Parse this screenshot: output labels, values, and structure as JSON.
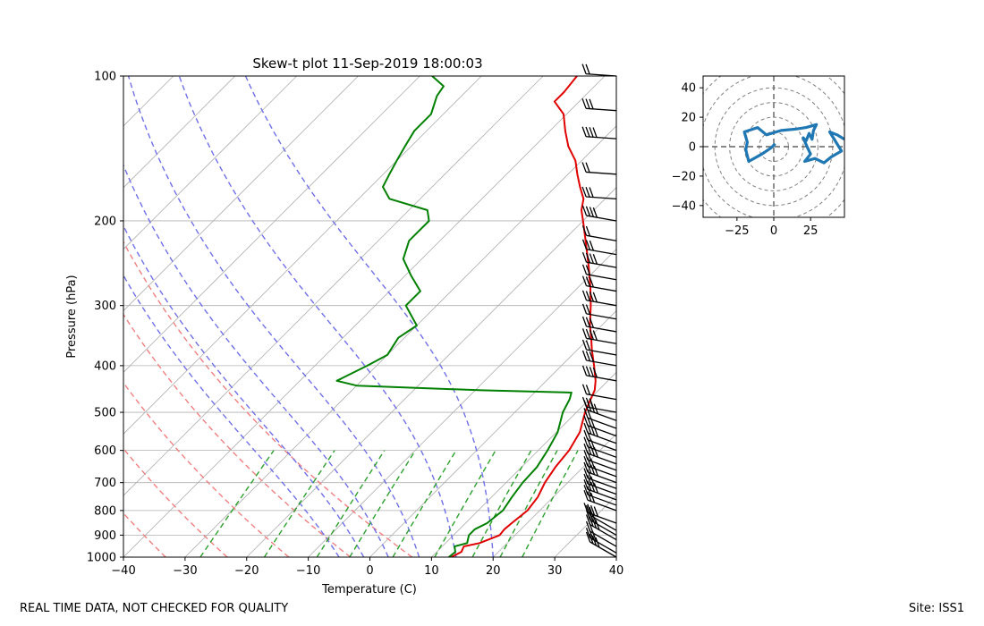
{
  "page": {
    "footer_left": "REAL TIME DATA, NOT CHECKED FOR QUALITY",
    "footer_right": "Site: ISS1"
  },
  "colors": {
    "temperature": "#e00000",
    "dewpoint": "#008000",
    "dry_adiabat": "#f08080",
    "moist_adiabat": "#7070e8",
    "mixing_ratio": "#2ca02c",
    "hodograph": "#1f77b4"
  },
  "chart_data": [
    {
      "type": "line",
      "subtype": "skew-t",
      "title": "Skew-t plot 11-Sep-2019 18:00:03",
      "xlabel": "Temperature (C)",
      "ylabel": "Pressure (hPa)",
      "xlim": [
        -40,
        40
      ],
      "ylim": [
        1000,
        100
      ],
      "x_ticks": [
        -40,
        -30,
        -20,
        -10,
        0,
        10,
        20,
        30,
        40
      ],
      "x_tick_labels": [
        "−40",
        "−30",
        "−20",
        "−10",
        "0",
        "10",
        "20",
        "30",
        "40"
      ],
      "y_ticks": [
        1000,
        900,
        800,
        700,
        600,
        500,
        400,
        300,
        200,
        100
      ],
      "y_tick_labels": [
        "1000",
        "900",
        "800",
        "700",
        "600",
        "500",
        "400",
        "300",
        "200",
        "100"
      ],
      "grid": true,
      "series": [
        {
          "name": "Temperature",
          "points": [
            [
              1000,
              13.2
            ],
            [
              975,
              14.0
            ],
            [
              950,
              13.5
            ],
            [
              935,
              15.5
            ],
            [
              900,
              17.5
            ],
            [
              875,
              17.3
            ],
            [
              850,
              17.5
            ],
            [
              800,
              18.0
            ],
            [
              750,
              17.5
            ],
            [
              700,
              16.3
            ],
            [
              650,
              15.5
            ],
            [
              600,
              15.0
            ],
            [
              550,
              13.8
            ],
            [
              500,
              11.4
            ],
            [
              470,
              10.2
            ],
            [
              450,
              9.4
            ],
            [
              430,
              8.0
            ],
            [
              400,
              5.3
            ],
            [
              370,
              2.3
            ],
            [
              350,
              0.3
            ],
            [
              330,
              -1.9
            ],
            [
              300,
              -5.0
            ],
            [
              275,
              -8.0
            ],
            [
              250,
              -11.5
            ],
            [
              225,
              -15.5
            ],
            [
              200,
              -20.0
            ],
            [
              190,
              -22.0
            ],
            [
              180,
              -23.5
            ],
            [
              170,
              -26.0
            ],
            [
              160,
              -28.5
            ],
            [
              150,
              -31.0
            ],
            [
              140,
              -34.5
            ],
            [
              130,
              -37.5
            ],
            [
              120,
              -40.5
            ],
            [
              113,
              -44.0
            ],
            [
              108,
              -44.0
            ],
            [
              100,
              -44.5
            ]
          ]
        },
        {
          "name": "Dewpoint",
          "points": [
            [
              1000,
              12.8
            ],
            [
              975,
              13.0
            ],
            [
              950,
              12.0
            ],
            [
              935,
              13.5
            ],
            [
              900,
              12.5
            ],
            [
              875,
              12.5
            ],
            [
              850,
              13.5
            ],
            [
              800,
              14.0
            ],
            [
              750,
              13.3
            ],
            [
              700,
              12.7
            ],
            [
              650,
              12.5
            ],
            [
              600,
              11.5
            ],
            [
              550,
              10.2
            ],
            [
              500,
              7.8
            ],
            [
              470,
              6.8
            ],
            [
              455,
              6.0
            ],
            [
              450,
              -9.0
            ],
            [
              440,
              -30.0
            ],
            [
              430,
              -34.0
            ],
            [
              400,
              -31.5
            ],
            [
              380,
              -30.0
            ],
            [
              350,
              -31.0
            ],
            [
              330,
              -30.0
            ],
            [
              300,
              -35.0
            ],
            [
              280,
              -35.0
            ],
            [
              260,
              -39.0
            ],
            [
              240,
              -43.0
            ],
            [
              220,
              -45.0
            ],
            [
              200,
              -45.0
            ],
            [
              190,
              -47.0
            ],
            [
              180,
              -55.0
            ],
            [
              170,
              -58.0
            ],
            [
              160,
              -59.0
            ],
            [
              150,
              -60.0
            ],
            [
              140,
              -61.0
            ],
            [
              130,
              -62.0
            ],
            [
              120,
              -62.0
            ],
            [
              110,
              -64.0
            ],
            [
              105,
              -64.5
            ],
            [
              100,
              -68.0
            ]
          ]
        }
      ],
      "background_lines": {
        "isotherms": [
          -120,
          -110,
          -100,
          -90,
          -80,
          -70,
          -60,
          -50,
          -40,
          -30,
          -20,
          -10,
          0,
          10,
          20,
          30,
          40
        ],
        "dry_adiabats_theta_K": [
          200,
          210,
          220,
          230,
          240,
          250,
          260,
          270,
          280
        ],
        "moist_adiabats_start_C": [
          -5,
          -1,
          3,
          8,
          14,
          20
        ],
        "mixing_ratio_g_per_kg": [
          0.4,
          1,
          2,
          3,
          5,
          8,
          12,
          16,
          20
        ]
      }
    },
    {
      "type": "scatter",
      "subtype": "hodograph",
      "xlim": [
        -48,
        48
      ],
      "ylim": [
        -48,
        48
      ],
      "x_ticks": [
        -25,
        0,
        25
      ],
      "x_tick_labels": [
        "−25",
        "0",
        "25"
      ],
      "y_ticks": [
        -40,
        -20,
        0,
        20,
        40
      ],
      "y_tick_labels": [
        "−40",
        "−20",
        "0",
        "20",
        "40"
      ],
      "rings": [
        10,
        20,
        30,
        40,
        50,
        60,
        70
      ],
      "points": [
        [
          1,
          2
        ],
        [
          -2,
          -1
        ],
        [
          -8,
          -5
        ],
        [
          -17,
          -10
        ],
        [
          -19,
          -2
        ],
        [
          -18,
          3
        ],
        [
          -20,
          10
        ],
        [
          -11,
          13
        ],
        [
          -5,
          8
        ],
        [
          5,
          11
        ],
        [
          15,
          12
        ],
        [
          22,
          13
        ],
        [
          29,
          15
        ],
        [
          27,
          11
        ],
        [
          26,
          5
        ],
        [
          24,
          9
        ],
        [
          22,
          4
        ],
        [
          20,
          6
        ],
        [
          23,
          -1
        ],
        [
          25,
          -5
        ],
        [
          21,
          -10
        ],
        [
          28,
          -8
        ],
        [
          34,
          -11
        ],
        [
          39,
          -7
        ],
        [
          46,
          -3
        ],
        [
          38,
          10
        ],
        [
          43,
          8
        ],
        [
          48,
          5
        ]
      ]
    }
  ]
}
